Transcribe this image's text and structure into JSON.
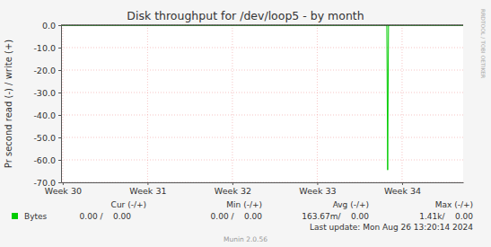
{
  "chart_data": {
    "type": "line",
    "title": "Disk throughput for /dev/loop5 - by month",
    "y_label": "Pr second read (-) / write (+)",
    "x": [
      29.98,
      33.82,
      33.83,
      33.84,
      34.72
    ],
    "series": [
      {
        "name": "Bytes",
        "color": "#00cc00",
        "values": [
          0,
          0,
          -64.5,
          0,
          0
        ],
        "stats": [
          "0.00 /    0.00",
          "0.00 /    0.00",
          "163.67m/    0.00",
          "1.41k/    0.00"
        ]
      }
    ],
    "stats_columns": [
      "Cur (-/+)",
      "Min (-/+)",
      "Avg (-/+)",
      "Max (-/+)"
    ],
    "xlim": [
      29.98,
      34.72
    ],
    "xticks": [
      {
        "value": 30,
        "label": "Week 30"
      },
      {
        "value": 31,
        "label": "Week 31"
      },
      {
        "value": 32,
        "label": "Week 32"
      },
      {
        "value": 33,
        "label": "Week 33"
      },
      {
        "value": 34,
        "label": "Week 34"
      }
    ],
    "ylim": [
      -70,
      0
    ],
    "yticks": [
      {
        "value": 0,
        "label": "0.0"
      },
      {
        "value": -10,
        "label": "-10.0"
      },
      {
        "value": -20,
        "label": "-20.0"
      },
      {
        "value": -30,
        "label": "-30.0"
      },
      {
        "value": -40,
        "label": "-40.0"
      },
      {
        "value": -50,
        "label": "-50.0"
      },
      {
        "value": -60,
        "label": "-60.0"
      },
      {
        "value": -70,
        "label": "-70.0"
      }
    ],
    "grid": true,
    "annotations": [
      "Last update: Mon Aug 26 13:20:14 2024",
      "Munin 2.0.56",
      "RRDTOOL / TOBI OETIKER"
    ]
  }
}
